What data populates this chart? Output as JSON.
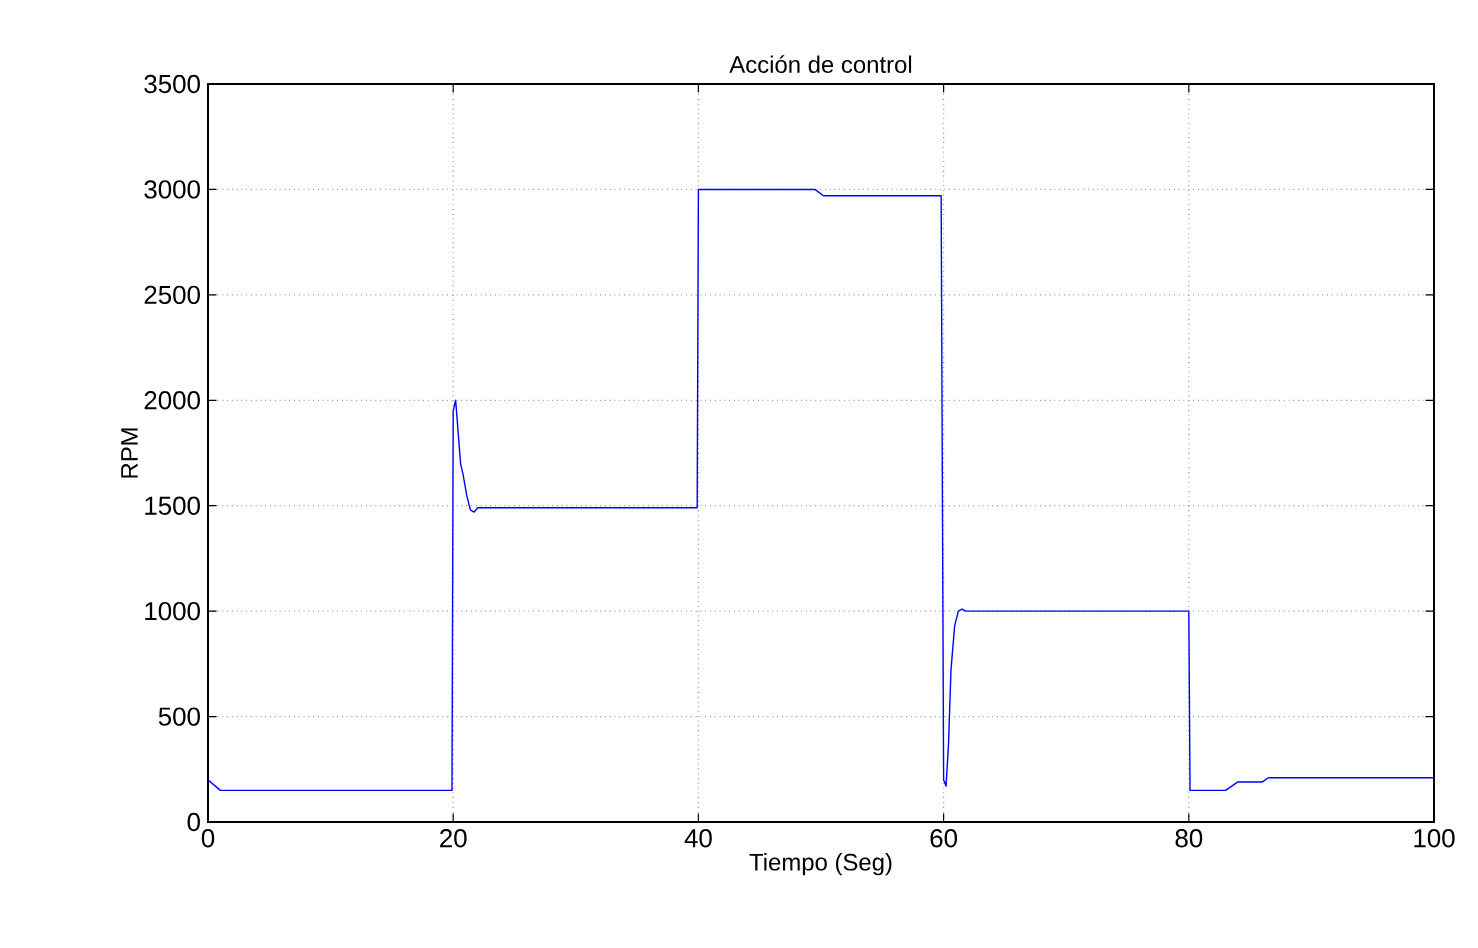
{
  "chart_data": {
    "type": "line",
    "title": "Acción de control",
    "xlabel": "Tiempo (Seg)",
    "ylabel": "RPM",
    "xlim": [
      0,
      100
    ],
    "ylim": [
      0,
      3500
    ],
    "xticks": [
      0,
      20,
      40,
      60,
      80,
      100
    ],
    "yticks": [
      0,
      500,
      1000,
      1500,
      2000,
      2500,
      3000,
      3500
    ],
    "grid": true,
    "series": [
      {
        "color": "#0000ff",
        "x": [
          0,
          1,
          19.9,
          20,
          20.2,
          20.4,
          20.6,
          20.8,
          21.1,
          21.4,
          21.7,
          22,
          39.9,
          40,
          49.5,
          50.2,
          59.8,
          60,
          60.2,
          60.4,
          60.6,
          60.9,
          61.2,
          61.5,
          61.8,
          80,
          80.1,
          83,
          84,
          86,
          86.5,
          100
        ],
        "values": [
          200,
          150,
          150,
          1950,
          2000,
          1850,
          1700,
          1650,
          1550,
          1480,
          1470,
          1490,
          1490,
          3000,
          3000,
          2970,
          2970,
          200,
          170,
          370,
          720,
          930,
          1000,
          1010,
          1000,
          1000,
          150,
          150,
          190,
          190,
          210,
          210
        ]
      }
    ]
  }
}
